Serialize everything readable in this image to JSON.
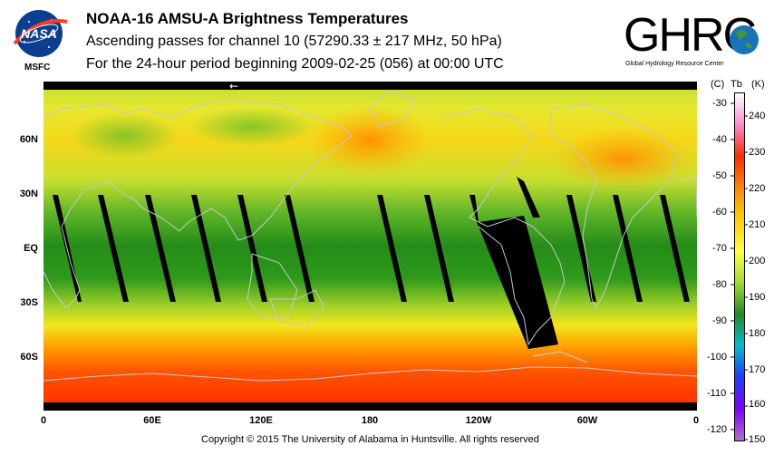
{
  "header": {
    "title": "NOAA-16 AMSU-A Brightness Temperatures",
    "subtitle": "Ascending passes for channel 10 (57290.33 ± 217 MHz, 50 hPa)",
    "period": "For the 24-hour period beginning 2009-02-25 (056) at 00:00 UTC"
  },
  "logos": {
    "nasa_text": "NASA",
    "nasa_caption": "MSFC",
    "ghrc_text": "GHRC",
    "ghrc_caption": "Global Hydrology Resource Center"
  },
  "map": {
    "lat_labels": [
      "60N",
      "30N",
      "EQ",
      "30S",
      "60S"
    ],
    "lon_labels": [
      "0",
      "60E",
      "120E",
      "180",
      "120W",
      "60W",
      "0"
    ],
    "direction_arrow": "←",
    "colors": {
      "cold": "#ff2a00",
      "mid": "#1f8a18",
      "warm": "#ffd000",
      "gap": "#000000",
      "coast": "#c8c8c8"
    }
  },
  "colorbar": {
    "units_header": [
      "(C)",
      "Tb",
      "(K)"
    ],
    "celsius_ticks": [
      "-30",
      "-40",
      "-50",
      "-60",
      "-70",
      "-80",
      "-90",
      "-100",
      "-110",
      "-120"
    ],
    "kelvin_ticks": [
      "240",
      "230",
      "220",
      "210",
      "200",
      "190",
      "180",
      "170",
      "160",
      "150"
    ],
    "gradient": [
      "#ffffff",
      "#ff88cc",
      "#ff2a00",
      "#ff8800",
      "#ffd000",
      "#ffff40",
      "#a0dc30",
      "#228b22",
      "#00bcd4",
      "#1e3cff",
      "#8000ff",
      "#b070c8"
    ]
  },
  "footer": {
    "copyright": "Copyright © 2015 The University of Alabama in Huntsville.  All rights reserved"
  }
}
